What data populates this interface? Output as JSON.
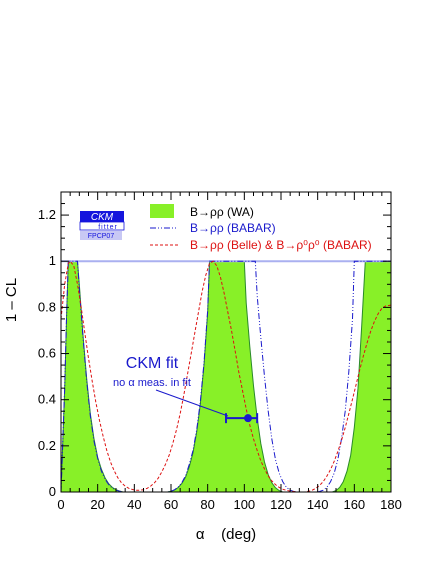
{
  "chart_data": {
    "type": "area",
    "title": "",
    "xlabel": "α    (deg)",
    "ylabel": "1 – CL",
    "xlim": [
      0,
      180
    ],
    "ylim": [
      0,
      1.3
    ],
    "x_ticks": [
      "0",
      "20",
      "40",
      "60",
      "80",
      "100",
      "120",
      "140",
      "160",
      "180"
    ],
    "y_ticks": [
      "0",
      "0.2",
      "0.4",
      "0.6",
      "0.8",
      "1",
      "1.2"
    ],
    "grid": false,
    "legend_placement": "top-right",
    "reference_line_y": 1.0,
    "logo": {
      "line1": "CKM",
      "line2": "fitter",
      "line3": "FPCP07"
    },
    "series": [
      {
        "name": "B→ρρ (WA)",
        "style": "filled",
        "color": "#88f028",
        "edge_color": "#2a8a2a",
        "points": [
          [
            0,
            0.0
          ],
          [
            2,
            0.45
          ],
          [
            3,
            0.75
          ],
          [
            4,
            1.0
          ],
          [
            9,
            1.0
          ],
          [
            10,
            0.9
          ],
          [
            12,
            0.68
          ],
          [
            14,
            0.49
          ],
          [
            16,
            0.34
          ],
          [
            18,
            0.23
          ],
          [
            20,
            0.15
          ],
          [
            22,
            0.1
          ],
          [
            24,
            0.062
          ],
          [
            26,
            0.036
          ],
          [
            28,
            0.02
          ],
          [
            30,
            0.01
          ],
          [
            32,
            0.004
          ],
          [
            34,
            0.0
          ],
          [
            58,
            0.0
          ],
          [
            60,
            0.003
          ],
          [
            62,
            0.009
          ],
          [
            64,
            0.02
          ],
          [
            66,
            0.038
          ],
          [
            68,
            0.066
          ],
          [
            70,
            0.11
          ],
          [
            72,
            0.17
          ],
          [
            74,
            0.26
          ],
          [
            76,
            0.38
          ],
          [
            78,
            0.55
          ],
          [
            80,
            0.78
          ],
          [
            81,
            1.0
          ],
          [
            100,
            1.0
          ],
          [
            101,
            0.82
          ],
          [
            103,
            0.63
          ],
          [
            105,
            0.46
          ],
          [
            107,
            0.32
          ],
          [
            109,
            0.21
          ],
          [
            111,
            0.13
          ],
          [
            113,
            0.075
          ],
          [
            115,
            0.04
          ],
          [
            117,
            0.018
          ],
          [
            119,
            0.006
          ],
          [
            121,
            0.0
          ],
          [
            148,
            0.0
          ],
          [
            150,
            0.006
          ],
          [
            152,
            0.02
          ],
          [
            154,
            0.045
          ],
          [
            156,
            0.09
          ],
          [
            158,
            0.16
          ],
          [
            160,
            0.28
          ],
          [
            162,
            0.45
          ],
          [
            164,
            0.72
          ],
          [
            166,
            1.0
          ],
          [
            180,
            1.0
          ]
        ]
      },
      {
        "name": "B→ρρ (BABAR)",
        "style": "dash-dot",
        "color": "#1a1acc",
        "points": [
          [
            0,
            0.0
          ],
          [
            2,
            0.45
          ],
          [
            3,
            0.75
          ],
          [
            4,
            1.0
          ],
          [
            9,
            1.0
          ],
          [
            10,
            0.88
          ],
          [
            12,
            0.67
          ],
          [
            14,
            0.48
          ],
          [
            16,
            0.33
          ],
          [
            18,
            0.22
          ],
          [
            20,
            0.145
          ],
          [
            22,
            0.092
          ],
          [
            24,
            0.056
          ],
          [
            26,
            0.032
          ],
          [
            28,
            0.017
          ],
          [
            30,
            0.008
          ],
          [
            32,
            0.003
          ],
          [
            34,
            0.0
          ],
          [
            58,
            0.0
          ],
          [
            60,
            0.003
          ],
          [
            62,
            0.01
          ],
          [
            64,
            0.022
          ],
          [
            66,
            0.042
          ],
          [
            68,
            0.072
          ],
          [
            70,
            0.12
          ],
          [
            72,
            0.18
          ],
          [
            74,
            0.27
          ],
          [
            76,
            0.39
          ],
          [
            78,
            0.56
          ],
          [
            80,
            0.79
          ],
          [
            81,
            1.0
          ],
          [
            106,
            1.0
          ],
          [
            107,
            0.85
          ],
          [
            109,
            0.67
          ],
          [
            111,
            0.5
          ],
          [
            113,
            0.35
          ],
          [
            115,
            0.23
          ],
          [
            117,
            0.14
          ],
          [
            119,
            0.082
          ],
          [
            121,
            0.044
          ],
          [
            123,
            0.02
          ],
          [
            125,
            0.008
          ],
          [
            127,
            0.002
          ],
          [
            129,
            0.0
          ],
          [
            139,
            0.0
          ],
          [
            141,
            0.002
          ],
          [
            143,
            0.008
          ],
          [
            145,
            0.02
          ],
          [
            147,
            0.044
          ],
          [
            149,
            0.082
          ],
          [
            151,
            0.14
          ],
          [
            153,
            0.23
          ],
          [
            155,
            0.35
          ],
          [
            157,
            0.52
          ],
          [
            159,
            0.75
          ],
          [
            160,
            1.0
          ],
          [
            180,
            1.0
          ]
        ]
      },
      {
        "name": "B→ρρ (Belle) & B→ρ⁰ρ⁰ (BABAR)",
        "style": "dashed",
        "color": "#dd1111",
        "points": [
          [
            0,
            0.75
          ],
          [
            2,
            0.9
          ],
          [
            4,
            0.99
          ],
          [
            5,
            1.0
          ],
          [
            7,
            0.98
          ],
          [
            9,
            0.9
          ],
          [
            11,
            0.8
          ],
          [
            13,
            0.69
          ],
          [
            15,
            0.58
          ],
          [
            17,
            0.48
          ],
          [
            19,
            0.39
          ],
          [
            21,
            0.31
          ],
          [
            23,
            0.24
          ],
          [
            25,
            0.18
          ],
          [
            27,
            0.13
          ],
          [
            29,
            0.092
          ],
          [
            31,
            0.062
          ],
          [
            33,
            0.04
          ],
          [
            35,
            0.025
          ],
          [
            37,
            0.016
          ],
          [
            39,
            0.011
          ],
          [
            41,
            0.008
          ],
          [
            43,
            0.008
          ],
          [
            45,
            0.01
          ],
          [
            47,
            0.016
          ],
          [
            49,
            0.026
          ],
          [
            51,
            0.04
          ],
          [
            53,
            0.06
          ],
          [
            55,
            0.087
          ],
          [
            57,
            0.12
          ],
          [
            59,
            0.16
          ],
          [
            61,
            0.21
          ],
          [
            63,
            0.27
          ],
          [
            65,
            0.34
          ],
          [
            67,
            0.42
          ],
          [
            69,
            0.51
          ],
          [
            71,
            0.6
          ],
          [
            73,
            0.69
          ],
          [
            75,
            0.78
          ],
          [
            77,
            0.87
          ],
          [
            79,
            0.94
          ],
          [
            81,
            0.99
          ],
          [
            83,
            1.0
          ],
          [
            85,
            0.98
          ],
          [
            87,
            0.93
          ],
          [
            89,
            0.86
          ],
          [
            91,
            0.78
          ],
          [
            93,
            0.7
          ],
          [
            95,
            0.61
          ],
          [
            97,
            0.52
          ],
          [
            99,
            0.44
          ],
          [
            101,
            0.36
          ],
          [
            103,
            0.29
          ],
          [
            105,
            0.23
          ],
          [
            107,
            0.18
          ],
          [
            109,
            0.135
          ],
          [
            111,
            0.1
          ],
          [
            113,
            0.07
          ],
          [
            115,
            0.048
          ],
          [
            117,
            0.032
          ],
          [
            119,
            0.02
          ],
          [
            121,
            0.012
          ],
          [
            123,
            0.007
          ],
          [
            125,
            0.004
          ],
          [
            127,
            0.002
          ],
          [
            129,
            0.0
          ],
          [
            133,
            0.0
          ],
          [
            135,
            0.003
          ],
          [
            137,
            0.008
          ],
          [
            139,
            0.016
          ],
          [
            141,
            0.028
          ],
          [
            143,
            0.045
          ],
          [
            145,
            0.068
          ],
          [
            147,
            0.097
          ],
          [
            149,
            0.133
          ],
          [
            151,
            0.175
          ],
          [
            153,
            0.224
          ],
          [
            155,
            0.279
          ],
          [
            157,
            0.339
          ],
          [
            159,
            0.402
          ],
          [
            161,
            0.467
          ],
          [
            163,
            0.531
          ],
          [
            165,
            0.592
          ],
          [
            167,
            0.648
          ],
          [
            169,
            0.698
          ],
          [
            171,
            0.74
          ],
          [
            173,
            0.773
          ],
          [
            175,
            0.795
          ],
          [
            177,
            0.806
          ],
          [
            180,
            0.81
          ]
        ]
      }
    ],
    "fit_result": {
      "label": "CKM fit",
      "sublabel": "no α meas. in fit",
      "alpha": 102,
      "cl": 0.32,
      "err_minus": 12,
      "err_plus": 5,
      "color": "#1a1acc"
    }
  }
}
